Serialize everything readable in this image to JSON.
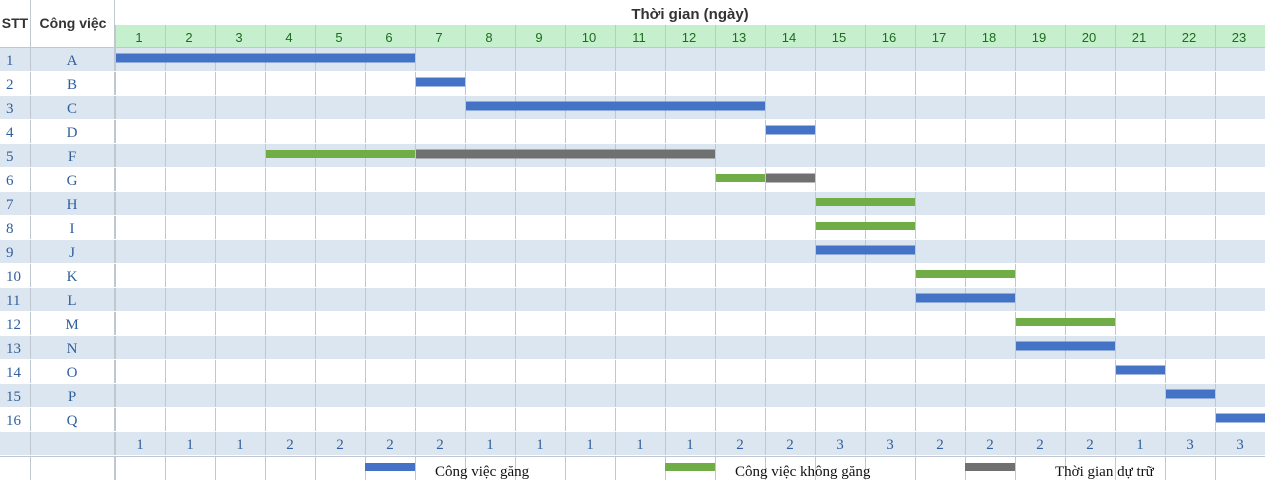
{
  "headers": {
    "stt": "STT",
    "task": "Công việc",
    "time": "Thời gian (ngày)"
  },
  "colors": {
    "critical": "#4472c4",
    "noncritical": "#70ad47",
    "slack": "#707070",
    "header_bg": "#c6efce",
    "row_band": "#dce6f1",
    "grid": "#bfc7d0"
  },
  "chart_data": {
    "type": "gantt",
    "days": [
      1,
      2,
      3,
      4,
      5,
      6,
      7,
      8,
      9,
      10,
      11,
      12,
      13,
      14,
      15,
      16,
      17,
      18,
      19,
      20,
      21,
      22,
      23
    ],
    "tasks": [
      {
        "stt": "1",
        "name": "A",
        "segments": [
          {
            "start": 0,
            "end": 6,
            "kind": "critical"
          }
        ]
      },
      {
        "stt": "2",
        "name": "B",
        "segments": [
          {
            "start": 6,
            "end": 7,
            "kind": "critical"
          }
        ]
      },
      {
        "stt": "3",
        "name": "C",
        "segments": [
          {
            "start": 7,
            "end": 13,
            "kind": "critical"
          }
        ]
      },
      {
        "stt": "4",
        "name": "D",
        "segments": [
          {
            "start": 13,
            "end": 14,
            "kind": "critical"
          }
        ]
      },
      {
        "stt": "5",
        "name": "F",
        "segments": [
          {
            "start": 3,
            "end": 6,
            "kind": "noncritical"
          },
          {
            "start": 6,
            "end": 12,
            "kind": "slack"
          }
        ]
      },
      {
        "stt": "6",
        "name": "G",
        "segments": [
          {
            "start": 12,
            "end": 13,
            "kind": "noncritical"
          },
          {
            "start": 13,
            "end": 14,
            "kind": "slack"
          }
        ]
      },
      {
        "stt": "7",
        "name": "H",
        "segments": [
          {
            "start": 14,
            "end": 16,
            "kind": "noncritical"
          }
        ]
      },
      {
        "stt": "8",
        "name": "I",
        "segments": [
          {
            "start": 14,
            "end": 16,
            "kind": "noncritical"
          }
        ]
      },
      {
        "stt": "9",
        "name": "J",
        "segments": [
          {
            "start": 14,
            "end": 16,
            "kind": "critical"
          }
        ]
      },
      {
        "stt": "10",
        "name": "K",
        "segments": [
          {
            "start": 16,
            "end": 18,
            "kind": "noncritical"
          }
        ]
      },
      {
        "stt": "11",
        "name": "L",
        "segments": [
          {
            "start": 16,
            "end": 18,
            "kind": "critical"
          }
        ]
      },
      {
        "stt": "12",
        "name": "M",
        "segments": [
          {
            "start": 18,
            "end": 20,
            "kind": "noncritical"
          }
        ]
      },
      {
        "stt": "13",
        "name": "N",
        "segments": [
          {
            "start": 18,
            "end": 20,
            "kind": "critical"
          }
        ]
      },
      {
        "stt": "14",
        "name": "O",
        "segments": [
          {
            "start": 20,
            "end": 21,
            "kind": "critical"
          }
        ]
      },
      {
        "stt": "15",
        "name": "P",
        "segments": [
          {
            "start": 21,
            "end": 22,
            "kind": "critical"
          }
        ]
      },
      {
        "stt": "16",
        "name": "Q",
        "segments": [
          {
            "start": 22,
            "end": 23,
            "kind": "critical"
          }
        ]
      }
    ],
    "daily_counts": [
      "1",
      "1",
      "1",
      "2",
      "2",
      "2",
      "2",
      "1",
      "1",
      "1",
      "1",
      "1",
      "2",
      "2",
      "3",
      "3",
      "2",
      "2",
      "2",
      "2",
      "1",
      "3",
      "3"
    ],
    "legend": [
      {
        "kind": "critical",
        "label": "Công việc găng"
      },
      {
        "kind": "noncritical",
        "label": "Công việc không găng"
      },
      {
        "kind": "slack",
        "label": "Thời gian dự trữ"
      }
    ]
  }
}
